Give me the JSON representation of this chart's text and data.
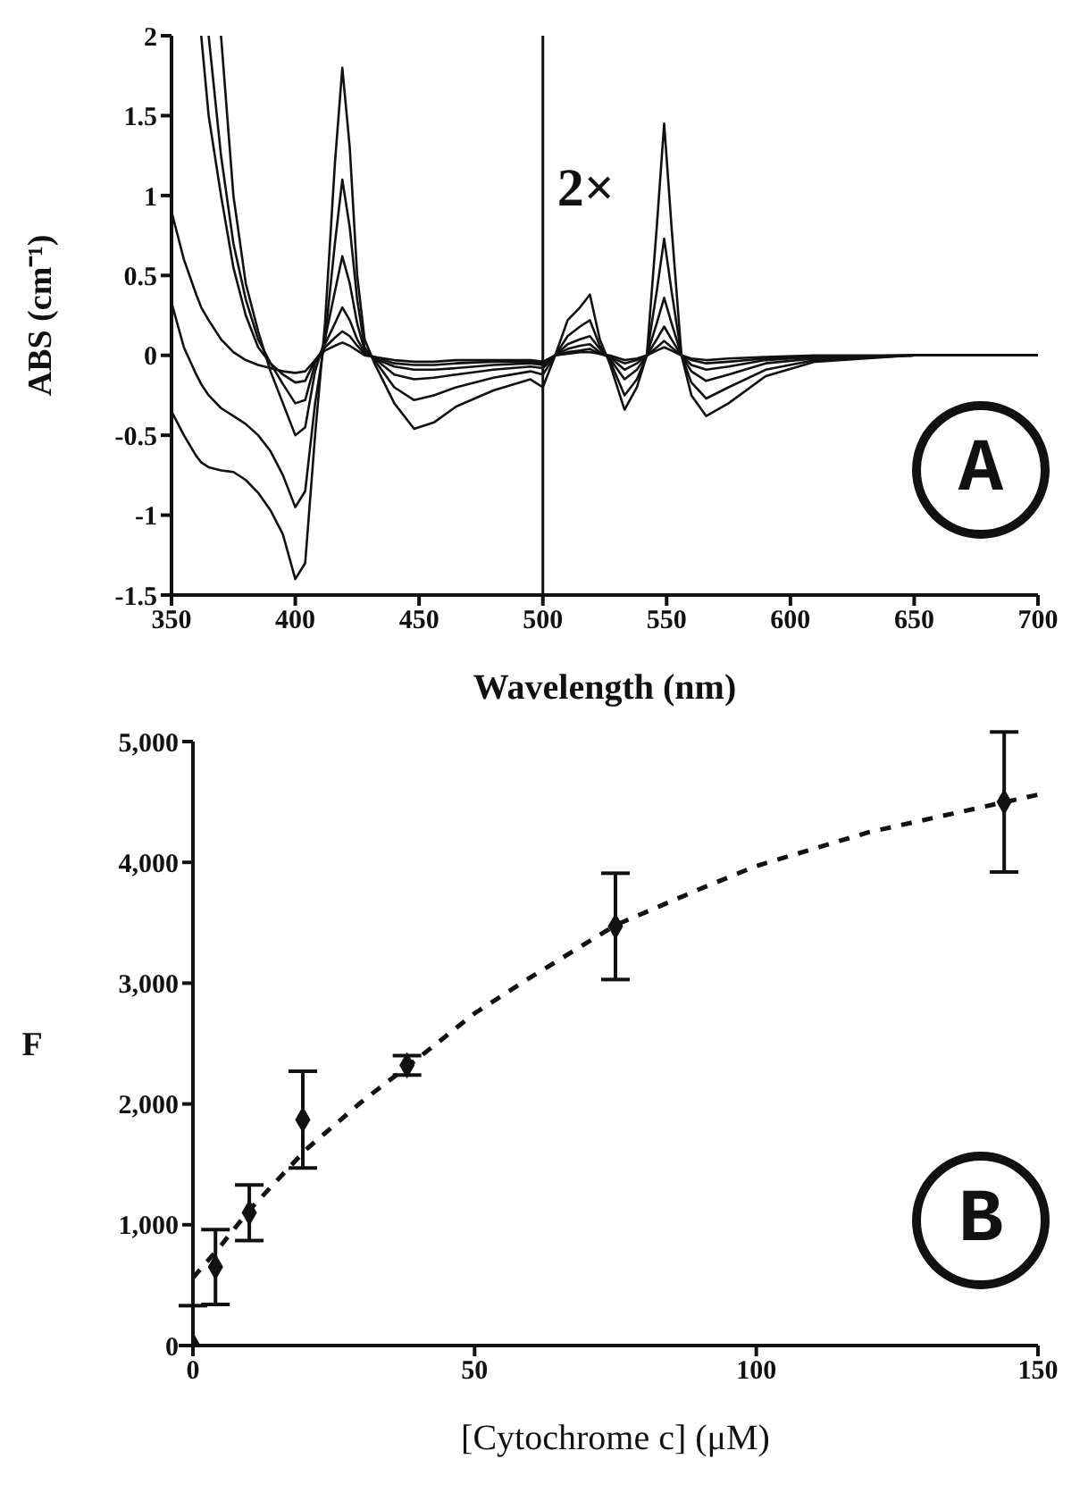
{
  "chart_data": [
    {
      "type": "line",
      "xlabel": "Wavelength (nm)",
      "ylabel": "ABS (cm⁻¹)",
      "annotations": [
        "A"
      ],
      "x": [
        350,
        355,
        360,
        362,
        365,
        370,
        375,
        380,
        385,
        390,
        395,
        400,
        404,
        408,
        412,
        416,
        419,
        422,
        425,
        428,
        432,
        440,
        448,
        456,
        465,
        480,
        495,
        500,
        505,
        510,
        515,
        519,
        523,
        527,
        533,
        538,
        542,
        546,
        549,
        552,
        556,
        560,
        566,
        575,
        590,
        610,
        650,
        700
      ],
      "series": [
        {
          "color": "#111111",
          "values": [
            0.9,
            0.6,
            0.38,
            0.3,
            0.22,
            0.1,
            0.02,
            -0.03,
            -0.06,
            -0.08,
            -0.1,
            -0.11,
            -0.1,
            -0.03,
            0.03,
            0.06,
            0.08,
            0.06,
            0.03,
            0.0,
            -0.01,
            -0.03,
            -0.04,
            -0.04,
            -0.03,
            -0.03,
            -0.03,
            -0.04,
            0.0,
            0.01,
            0.02,
            0.02,
            0.01,
            0.0,
            -0.03,
            -0.02,
            0.0,
            0.03,
            0.05,
            0.03,
            0.0,
            -0.02,
            -0.03,
            -0.02,
            -0.01,
            0.0,
            0.0,
            0.0
          ]
        },
        {
          "color": "#111111",
          "values": [
            null,
            null,
            null,
            2.0,
            1.5,
            1.0,
            0.55,
            0.25,
            0.05,
            -0.05,
            -0.12,
            -0.17,
            -0.16,
            -0.03,
            0.05,
            0.11,
            0.15,
            0.12,
            0.06,
            0.01,
            -0.01,
            -0.05,
            -0.06,
            -0.06,
            -0.05,
            -0.04,
            -0.04,
            -0.05,
            0.0,
            0.02,
            0.03,
            0.04,
            0.01,
            -0.01,
            -0.05,
            -0.03,
            0.0,
            0.05,
            0.09,
            0.05,
            0.0,
            -0.03,
            -0.05,
            -0.04,
            -0.02,
            -0.01,
            0.0,
            0.0
          ]
        },
        {
          "color": "#111111",
          "values": [
            null,
            null,
            null,
            null,
            2.0,
            1.25,
            0.7,
            0.35,
            0.1,
            -0.05,
            -0.18,
            -0.3,
            -0.28,
            -0.05,
            0.07,
            0.2,
            0.3,
            0.22,
            0.1,
            0.02,
            -0.02,
            -0.07,
            -0.09,
            -0.09,
            -0.08,
            -0.06,
            -0.05,
            -0.06,
            0.0,
            0.04,
            0.06,
            0.07,
            0.02,
            -0.01,
            -0.09,
            -0.05,
            0.0,
            0.1,
            0.18,
            0.1,
            0.0,
            -0.06,
            -0.09,
            -0.07,
            -0.03,
            -0.01,
            0.0,
            0.0
          ]
        },
        {
          "color": "#111111",
          "values": [
            null,
            null,
            null,
            null,
            null,
            2.0,
            1.0,
            0.45,
            0.15,
            -0.1,
            -0.3,
            -0.5,
            -0.45,
            -0.1,
            0.1,
            0.4,
            0.62,
            0.45,
            0.2,
            0.03,
            -0.02,
            -0.12,
            -0.15,
            -0.14,
            -0.12,
            -0.09,
            -0.07,
            -0.08,
            0.0,
            0.07,
            0.1,
            0.12,
            0.04,
            -0.02,
            -0.15,
            -0.09,
            0.0,
            0.2,
            0.36,
            0.2,
            0.0,
            -0.1,
            -0.16,
            -0.12,
            -0.05,
            -0.02,
            0.0,
            0.0
          ]
        },
        {
          "color": "#111111",
          "values": [
            0.33,
            0.05,
            -0.12,
            -0.18,
            -0.25,
            -0.33,
            -0.38,
            -0.43,
            -0.5,
            -0.6,
            -0.75,
            -0.95,
            -0.85,
            -0.3,
            0.1,
            0.7,
            1.1,
            0.8,
            0.35,
            0.05,
            -0.03,
            -0.2,
            -0.28,
            -0.25,
            -0.2,
            -0.14,
            -0.1,
            -0.12,
            0.0,
            0.12,
            0.18,
            0.22,
            0.06,
            -0.03,
            -0.25,
            -0.15,
            0.0,
            0.4,
            0.73,
            0.4,
            0.0,
            -0.17,
            -0.27,
            -0.2,
            -0.09,
            -0.03,
            0.0,
            0.0
          ]
        },
        {
          "color": "#111111",
          "values": [
            -0.35,
            -0.5,
            -0.63,
            -0.67,
            -0.7,
            -0.72,
            -0.73,
            -0.78,
            -0.86,
            -0.97,
            -1.12,
            -1.4,
            -1.3,
            -0.5,
            0.2,
            1.2,
            1.8,
            1.3,
            0.5,
            0.1,
            -0.05,
            -0.3,
            -0.46,
            -0.42,
            -0.32,
            -0.22,
            -0.15,
            -0.2,
            0.0,
            0.22,
            0.3,
            0.38,
            0.1,
            -0.05,
            -0.34,
            -0.2,
            0.0,
            0.8,
            1.45,
            0.8,
            0.0,
            -0.25,
            -0.38,
            -0.3,
            -0.13,
            -0.04,
            0.0,
            0.0
          ]
        }
      ],
      "xlim": [
        350,
        700
      ],
      "xticks": [
        350,
        400,
        450,
        500,
        550,
        600,
        650,
        700
      ],
      "ylim": [
        -1.5,
        2
      ],
      "yticks": [
        -1.5,
        -1,
        -0.5,
        0,
        0.5,
        1,
        1.5,
        2
      ],
      "ref_lines": [
        {
          "axis": "x",
          "value": 500,
          "label": "2×",
          "color": "#111111"
        }
      ]
    },
    {
      "type": "scatter",
      "xlabel": "[Cytochrome c] (μM)",
      "ylabel": "F",
      "annotations": [
        "B"
      ],
      "series": [
        {
          "color": "#111111",
          "marker": "diamond",
          "x": [
            0,
            4,
            10,
            19.5,
            38,
            75,
            144
          ],
          "values": [
            0,
            650,
            1100,
            1870,
            2320,
            3470,
            4500
          ],
          "errors": [
            [
              0,
              330
            ],
            310,
            230,
            400,
            80,
            440,
            580
          ]
        },
        {
          "type": "line",
          "color": "#111111",
          "line_style": "dashed",
          "x": [
            0,
            5,
            10,
            20,
            30,
            40,
            50,
            60,
            75,
            90,
            100,
            120,
            150
          ],
          "values": [
            560,
            830,
            1120,
            1620,
            2020,
            2380,
            2750,
            3050,
            3480,
            3780,
            3970,
            4250,
            4560
          ]
        }
      ],
      "xlim": [
        0,
        150
      ],
      "xticks": [
        0,
        50,
        100,
        150
      ],
      "ylim": [
        0,
        5000
      ],
      "yticks": [
        0,
        {
          "value": 1000,
          "label": "1,000"
        },
        {
          "value": 2000,
          "label": "2,000"
        },
        {
          "value": 3000,
          "label": "3,000"
        },
        {
          "value": 4000,
          "label": "4,000"
        },
        {
          "value": 5000,
          "label": "5,000"
        }
      ]
    }
  ]
}
